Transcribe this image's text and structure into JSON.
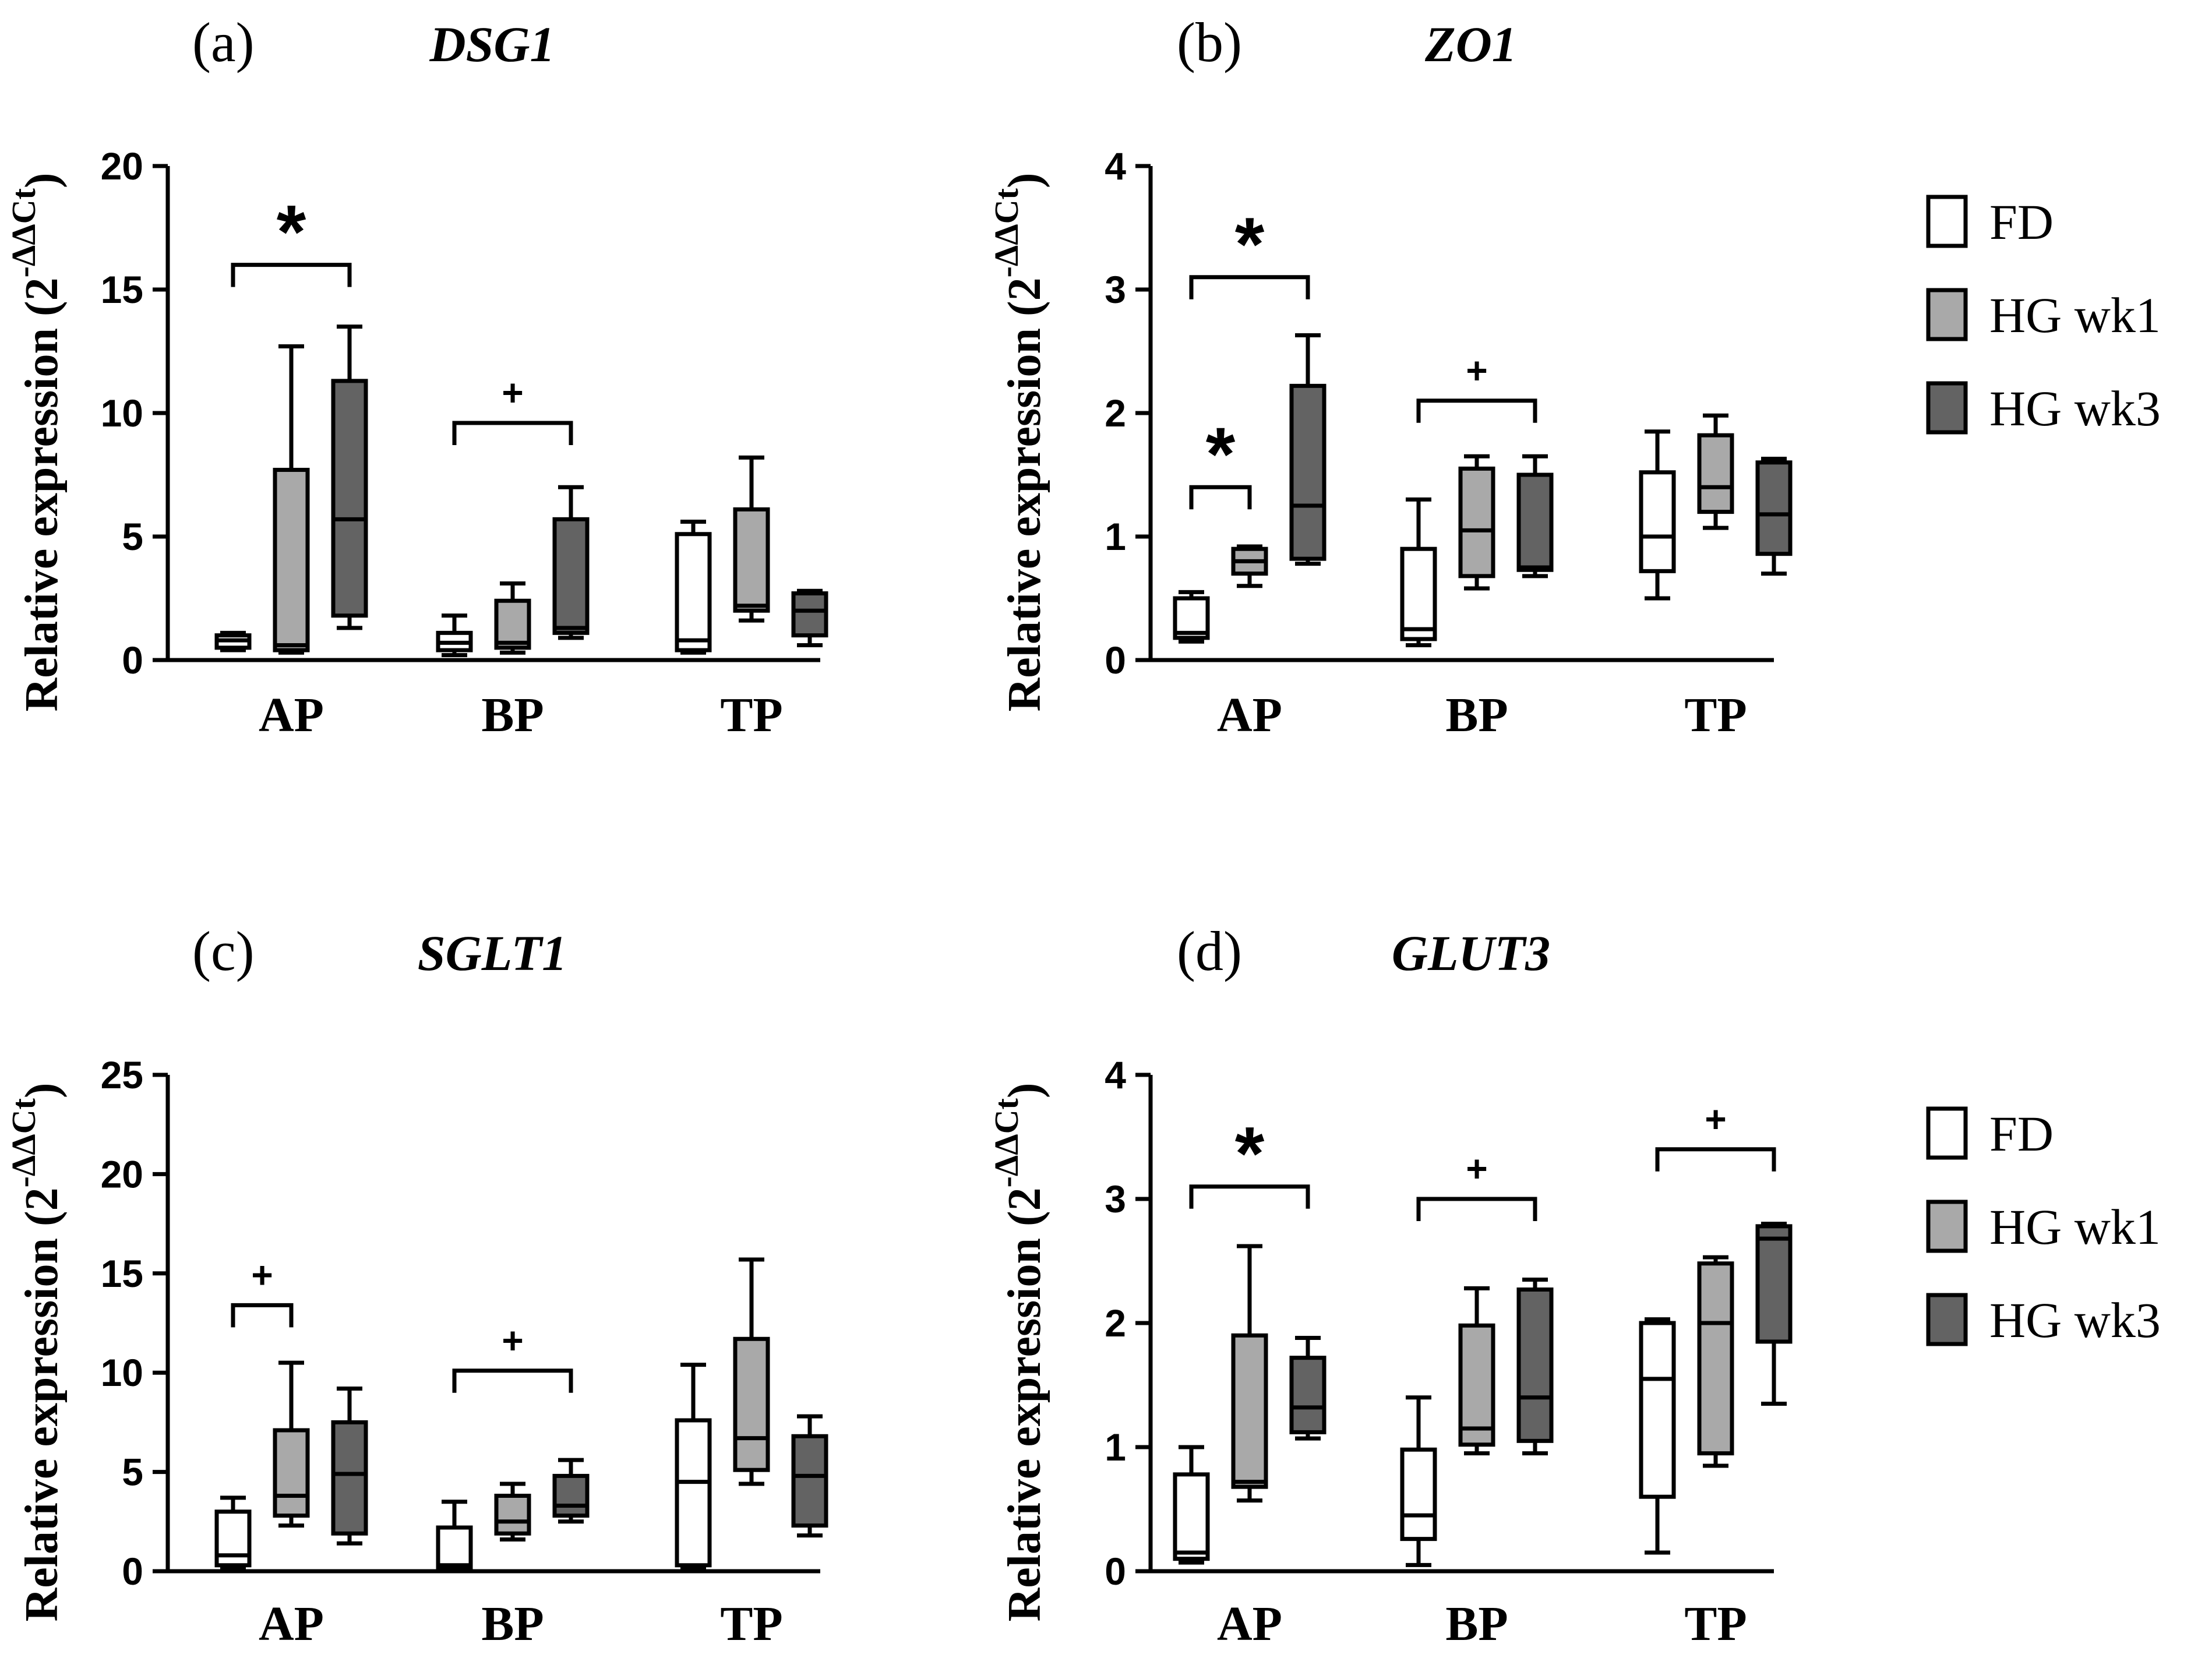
{
  "legend": [
    {
      "label": "FD",
      "color": "#ffffff"
    },
    {
      "label": "HG wk1",
      "color": "#a9a9a9"
    },
    {
      "label": "HG wk3",
      "color": "#636363"
    }
  ],
  "ylabel_text": "Relative expression (2",
  "ylabel_sup": "-ΔΔCt",
  "ylabel_close": ")",
  "chart_data": [
    {
      "panel": "(a)",
      "title": "DSG1",
      "type": "box",
      "categories": [
        "AP",
        "BP",
        "TP"
      ],
      "ylim": [
        0,
        20
      ],
      "yticks": [
        0,
        5,
        10,
        15,
        20
      ],
      "series": [
        {
          "name": "FD",
          "boxes": [
            {
              "min": 0.4,
              "q1": 0.5,
              "median": 0.8,
              "q3": 1.0,
              "max": 1.1
            },
            {
              "min": 0.2,
              "q1": 0.4,
              "median": 0.7,
              "q3": 1.1,
              "max": 1.8
            },
            {
              "min": 0.3,
              "q1": 0.4,
              "median": 0.8,
              "q3": 5.1,
              "max": 5.6
            }
          ]
        },
        {
          "name": "HG wk1",
          "boxes": [
            {
              "min": 0.3,
              "q1": 0.4,
              "median": 0.6,
              "q3": 7.7,
              "max": 12.7
            },
            {
              "min": 0.3,
              "q1": 0.5,
              "median": 0.7,
              "q3": 2.4,
              "max": 3.1
            },
            {
              "min": 1.6,
              "q1": 2.0,
              "median": 2.2,
              "q3": 6.1,
              "max": 8.2
            }
          ]
        },
        {
          "name": "HG wk3",
          "boxes": [
            {
              "min": 1.3,
              "q1": 1.8,
              "median": 5.7,
              "q3": 11.3,
              "max": 13.5
            },
            {
              "min": 0.9,
              "q1": 1.1,
              "median": 1.3,
              "q3": 5.7,
              "max": 7.0
            },
            {
              "min": 0.6,
              "q1": 1.0,
              "median": 2.0,
              "q3": 2.7,
              "max": 2.8
            }
          ]
        }
      ],
      "annotations": [
        {
          "symbol": "*",
          "category": "AP",
          "from": "FD",
          "to": "HG wk3",
          "y": 16.0
        },
        {
          "symbol": "+",
          "category": "BP",
          "from": "FD",
          "to": "HG wk3",
          "y": 9.6
        }
      ]
    },
    {
      "panel": "(b)",
      "title": "ZO1",
      "type": "box",
      "categories": [
        "AP",
        "BP",
        "TP"
      ],
      "ylim": [
        0,
        4
      ],
      "yticks": [
        0,
        1,
        2,
        3,
        4
      ],
      "series": [
        {
          "name": "FD",
          "boxes": [
            {
              "min": 0.15,
              "q1": 0.18,
              "median": 0.22,
              "q3": 0.5,
              "max": 0.55
            },
            {
              "min": 0.12,
              "q1": 0.17,
              "median": 0.25,
              "q3": 0.9,
              "max": 1.3
            },
            {
              "min": 0.5,
              "q1": 0.72,
              "median": 1.0,
              "q3": 1.52,
              "max": 1.85
            }
          ]
        },
        {
          "name": "HG wk1",
          "boxes": [
            {
              "min": 0.6,
              "q1": 0.7,
              "median": 0.8,
              "q3": 0.9,
              "max": 0.92
            },
            {
              "min": 0.58,
              "q1": 0.68,
              "median": 1.05,
              "q3": 1.55,
              "max": 1.65
            },
            {
              "min": 1.07,
              "q1": 1.2,
              "median": 1.4,
              "q3": 1.82,
              "max": 1.98
            }
          ]
        },
        {
          "name": "HG wk3",
          "boxes": [
            {
              "min": 0.78,
              "q1": 0.82,
              "median": 1.25,
              "q3": 2.22,
              "max": 2.63
            },
            {
              "min": 0.68,
              "q1": 0.73,
              "median": 0.75,
              "q3": 1.5,
              "max": 1.65
            },
            {
              "min": 0.7,
              "q1": 0.86,
              "median": 1.18,
              "q3": 1.6,
              "max": 1.63
            }
          ]
        }
      ],
      "annotations": [
        {
          "symbol": "*",
          "category": "AP",
          "from": "FD",
          "to": "HG wk3",
          "y": 3.1
        },
        {
          "symbol": "*",
          "category": "AP",
          "from": "FD",
          "to": "HG wk1",
          "y": 1.4
        },
        {
          "symbol": "+",
          "category": "BP",
          "from": "FD",
          "to": "HG wk3",
          "y": 2.1
        }
      ]
    },
    {
      "panel": "(c)",
      "title": "SGLT1",
      "type": "box",
      "categories": [
        "AP",
        "BP",
        "TP"
      ],
      "ylim": [
        0,
        25
      ],
      "yticks": [
        0,
        5,
        10,
        15,
        20,
        25
      ],
      "series": [
        {
          "name": "FD",
          "boxes": [
            {
              "min": 0.2,
              "q1": 0.3,
              "median": 0.8,
              "q3": 3.0,
              "max": 3.7
            },
            {
              "min": 0.1,
              "q1": 0.2,
              "median": 0.3,
              "q3": 2.2,
              "max": 3.5
            },
            {
              "min": 0.2,
              "q1": 0.3,
              "median": 4.5,
              "q3": 7.6,
              "max": 10.4
            }
          ]
        },
        {
          "name": "HG wk1",
          "boxes": [
            {
              "min": 2.3,
              "q1": 2.8,
              "median": 3.8,
              "q3": 7.1,
              "max": 10.5
            },
            {
              "min": 1.6,
              "q1": 1.9,
              "median": 2.5,
              "q3": 3.8,
              "max": 4.4
            },
            {
              "min": 4.4,
              "q1": 5.1,
              "median": 6.7,
              "q3": 11.7,
              "max": 15.7
            }
          ]
        },
        {
          "name": "HG wk3",
          "boxes": [
            {
              "min": 1.4,
              "q1": 1.9,
              "median": 4.9,
              "q3": 7.5,
              "max": 9.2
            },
            {
              "min": 2.5,
              "q1": 2.8,
              "median": 3.3,
              "q3": 4.8,
              "max": 5.6
            },
            {
              "min": 1.8,
              "q1": 2.3,
              "median": 4.8,
              "q3": 6.8,
              "max": 7.8
            }
          ]
        }
      ],
      "annotations": [
        {
          "symbol": "+",
          "category": "AP",
          "from": "FD",
          "to": "HG wk1",
          "y": 13.4
        },
        {
          "symbol": "+",
          "category": "BP",
          "from": "FD",
          "to": "HG wk3",
          "y": 10.1
        }
      ]
    },
    {
      "panel": "(d)",
      "title": "GLUT3",
      "type": "box",
      "categories": [
        "AP",
        "BP",
        "TP"
      ],
      "ylim": [
        0,
        4
      ],
      "yticks": [
        0,
        1,
        2,
        3,
        4
      ],
      "series": [
        {
          "name": "FD",
          "boxes": [
            {
              "min": 0.07,
              "q1": 0.1,
              "median": 0.15,
              "q3": 0.78,
              "max": 1.0
            },
            {
              "min": 0.05,
              "q1": 0.26,
              "median": 0.45,
              "q3": 0.98,
              "max": 1.4
            },
            {
              "min": 0.15,
              "q1": 0.6,
              "median": 1.55,
              "q3": 2.0,
              "max": 2.03
            }
          ]
        },
        {
          "name": "HG wk1",
          "boxes": [
            {
              "min": 0.57,
              "q1": 0.68,
              "median": 0.72,
              "q3": 1.9,
              "max": 2.62
            },
            {
              "min": 0.95,
              "q1": 1.02,
              "median": 1.15,
              "q3": 1.98,
              "max": 2.28
            },
            {
              "min": 0.85,
              "q1": 0.95,
              "median": 2.0,
              "q3": 2.48,
              "max": 2.53
            }
          ]
        },
        {
          "name": "HG wk3",
          "boxes": [
            {
              "min": 1.07,
              "q1": 1.12,
              "median": 1.32,
              "q3": 1.72,
              "max": 1.88
            },
            {
              "min": 0.95,
              "q1": 1.05,
              "median": 1.4,
              "q3": 2.27,
              "max": 2.35
            },
            {
              "min": 1.35,
              "q1": 1.85,
              "median": 2.68,
              "q3": 2.78,
              "max": 2.8
            }
          ]
        }
      ],
      "annotations": [
        {
          "symbol": "*",
          "category": "AP",
          "from": "FD",
          "to": "HG wk3",
          "y": 3.1
        },
        {
          "symbol": "+",
          "category": "BP",
          "from": "FD",
          "to": "HG wk3",
          "y": 3.0
        },
        {
          "symbol": "+",
          "category": "TP",
          "from": "FD",
          "to": "HG wk3",
          "y": 3.4
        }
      ]
    }
  ]
}
